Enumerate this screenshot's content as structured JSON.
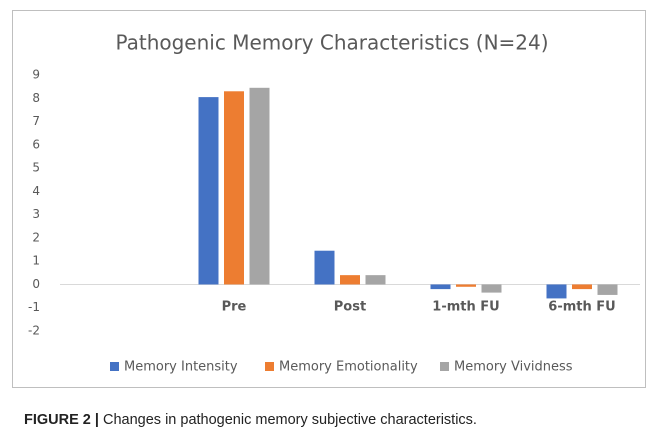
{
  "chart_data": {
    "type": "bar",
    "title": "Pathogenic Memory Characteristics (N=24)",
    "categories": [
      null,
      "Pre",
      "Post",
      "1-mth FU",
      "6-mth FU"
    ],
    "series": [
      {
        "name": "Memory Intensity",
        "color": "#4472c4",
        "values": [
          null,
          8.05,
          1.45,
          -0.2,
          -0.6
        ]
      },
      {
        "name": "Memory Emotionality",
        "color": "#ed7d31",
        "values": [
          null,
          8.3,
          0.4,
          -0.1,
          -0.2
        ]
      },
      {
        "name": "Memory Vividness",
        "color": "#a5a5a5",
        "values": [
          null,
          8.45,
          0.4,
          -0.35,
          -0.45
        ]
      }
    ],
    "ylim": [
      -2,
      9
    ],
    "yticks": [
      -2,
      -1,
      0,
      1,
      2,
      3,
      4,
      5,
      6,
      7,
      8,
      9
    ],
    "grid": false,
    "legend": "bottom"
  },
  "caption": {
    "label": "FIGURE 2 |",
    "text": "Changes in pathogenic memory subjective characteristics."
  }
}
